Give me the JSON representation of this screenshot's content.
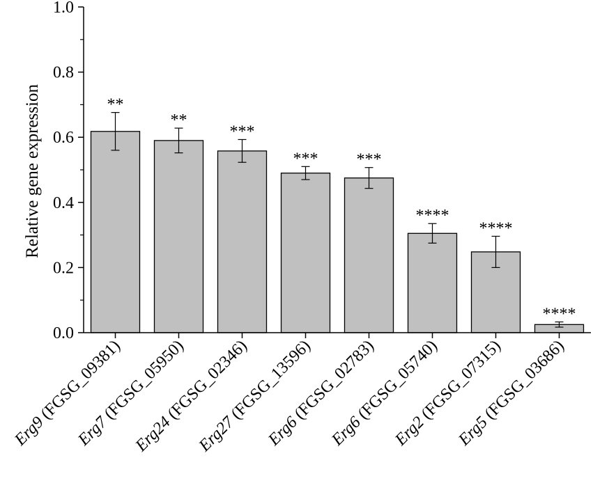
{
  "chart_data": {
    "type": "bar",
    "title": "",
    "xlabel": "",
    "ylabel": "Relative gene expression",
    "ylim": [
      0,
      1.0
    ],
    "yticks": [
      "0.0",
      "0.2",
      "0.4",
      "0.6",
      "0.8",
      "1.0"
    ],
    "grid": false,
    "categories": [
      {
        "gene": "Erg9",
        "id": " (FGSG_09381)"
      },
      {
        "gene": "Erg7",
        "id": " (FGSG_05950)"
      },
      {
        "gene": "Erg24",
        "id": " (FGSG_02346)"
      },
      {
        "gene": "Erg27",
        "id": " (FGSG_13596)"
      },
      {
        "gene": "Erg6",
        "id": " (FGSG_02783)"
      },
      {
        "gene": "Erg6",
        "id": " (FGSG_05740)"
      },
      {
        "gene": "Erg2",
        "id": " (FGSG_07315)"
      },
      {
        "gene": "Erg5",
        "id": " (FGSG_03686)"
      }
    ],
    "values": [
      0.618,
      0.59,
      0.558,
      0.49,
      0.475,
      0.305,
      0.248,
      0.025
    ],
    "errors": [
      0.058,
      0.038,
      0.035,
      0.02,
      0.032,
      0.03,
      0.048,
      0.008
    ],
    "significance": [
      "**",
      "**",
      "***",
      "***",
      "***",
      "****",
      "****",
      "****"
    ],
    "colors": {
      "bar_fill": "#c0c0c0",
      "bar_stroke": "#000000",
      "axis": "#000000"
    }
  }
}
